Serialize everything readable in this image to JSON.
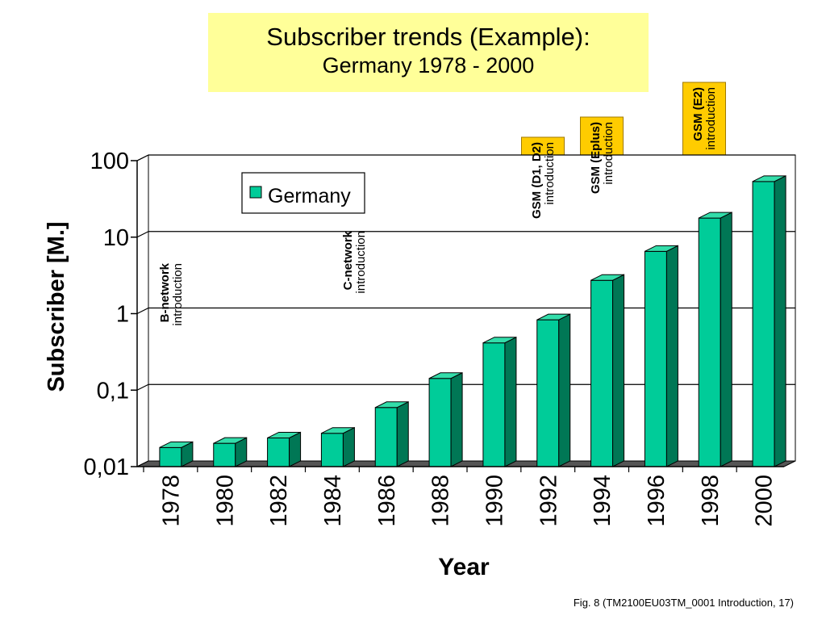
{
  "title": "Subscriber trends (Example):",
  "subtitle": "Germany 1978 - 2000",
  "caption": "Fig. 8 (TM2100EU03TM_0001 Introduction, 17)",
  "colors": {
    "bar_front": "#00cc99",
    "bar_side": "#007755",
    "bar_top": "#33ddaa",
    "arrow": "#ffcc00",
    "title_bg": "#ffff99"
  },
  "chart_data": {
    "type": "bar",
    "scale": "log",
    "categories": [
      "1978",
      "1980",
      "1982",
      "1984",
      "1986",
      "1988",
      "1990",
      "1992",
      "1994",
      "1996",
      "1998",
      "2000"
    ],
    "series": [
      {
        "name": "Germany",
        "values": [
          0.015,
          0.017,
          0.02,
          0.023,
          0.05,
          0.12,
          0.35,
          0.7,
          2.3,
          5.5,
          15,
          45
        ]
      }
    ],
    "xlabel": "Year",
    "ylabel": "Subscriber [M.]",
    "ylim": [
      0.01,
      100
    ],
    "yticks": [
      {
        "value": 0.01,
        "label": "0,01"
      },
      {
        "value": 0.1,
        "label": "0,1"
      },
      {
        "value": 1,
        "label": "1"
      },
      {
        "value": 10,
        "label": "10"
      },
      {
        "value": 100,
        "label": "100"
      }
    ],
    "grid": true,
    "legend": "top-left",
    "annotations": [
      {
        "bold": "B-network",
        "normal": "introduction",
        "category": "1978"
      },
      {
        "bold": "C-network",
        "normal": "introduction",
        "category": "1984"
      },
      {
        "bold": "GSM (D1, D2)",
        "normal": "introduction",
        "category": "1992"
      },
      {
        "bold": "GSM (Eplus)",
        "normal": "introduction",
        "category": "1994"
      },
      {
        "bold": "GSM (E2)",
        "normal": "introduction",
        "category": "1998"
      }
    ]
  }
}
